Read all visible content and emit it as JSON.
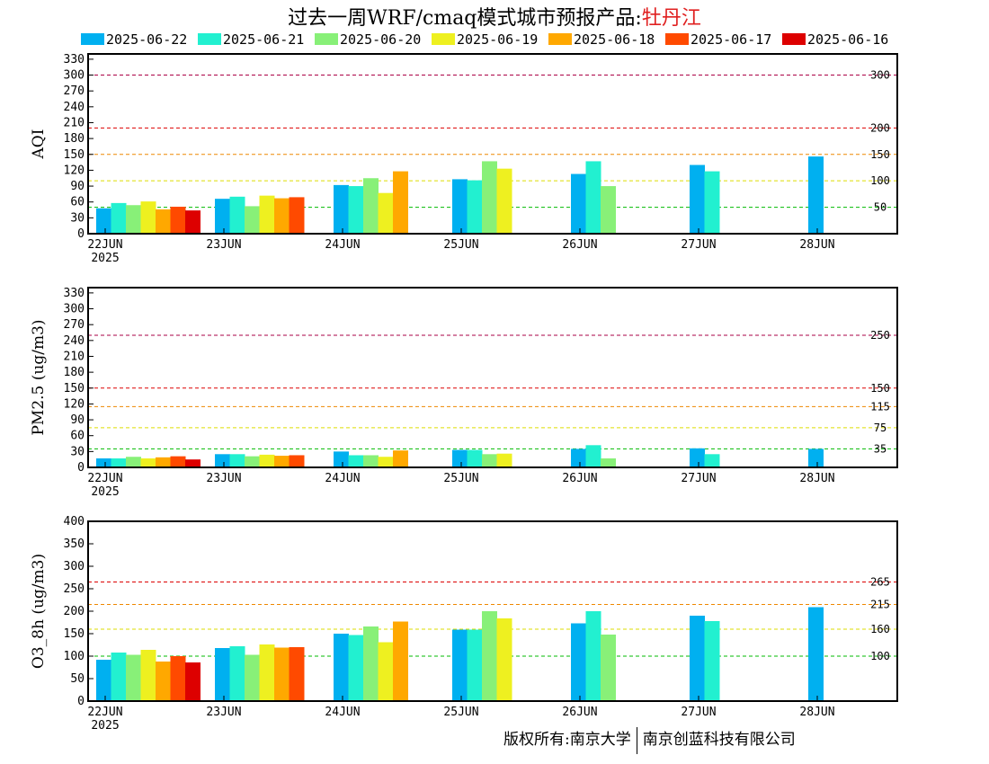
{
  "title": {
    "prefix": "过去一周WRF/cmaq模式城市预报产品:",
    "city": "牡丹江"
  },
  "copyright": {
    "part1": "版权所有:南京大学",
    "part2": "南京创蓝科技有限公司"
  },
  "legend": [
    {
      "label": "2025-06-22",
      "color": "#00b0f0"
    },
    {
      "label": "2025-06-21",
      "color": "#22f0d0"
    },
    {
      "label": "2025-06-20",
      "color": "#88f078"
    },
    {
      "label": "2025-06-19",
      "color": "#eef020"
    },
    {
      "label": "2025-06-18",
      "color": "#ffa800"
    },
    {
      "label": "2025-06-17",
      "color": "#ff4a00"
    },
    {
      "label": "2025-06-16",
      "color": "#dd0000"
    }
  ],
  "chart_data": [
    {
      "type": "bar",
      "ylabel": "AQI",
      "ylim": [
        0,
        340
      ],
      "yticks": [
        0,
        30,
        60,
        90,
        120,
        150,
        180,
        210,
        240,
        270,
        300,
        330
      ],
      "categories": [
        "22JUN",
        "23JUN",
        "24JUN",
        "25JUN",
        "26JUN",
        "27JUN",
        "28JUN"
      ],
      "first_category_year": "2025",
      "thresholds": [
        {
          "value": 50,
          "label": "50",
          "color": "#00bb00"
        },
        {
          "value": 100,
          "label": "100",
          "color": "#dddd00"
        },
        {
          "value": 150,
          "label": "150",
          "color": "#ee8800"
        },
        {
          "value": 200,
          "label": "200",
          "color": "#dd0000"
        },
        {
          "value": 300,
          "label": "300",
          "color": "#aa0044"
        }
      ],
      "series": [
        {
          "name": "2025-06-22",
          "values": [
            48,
            66,
            92,
            103,
            113,
            130,
            146
          ]
        },
        {
          "name": "2025-06-21",
          "values": [
            58,
            70,
            90,
            101,
            137,
            118,
            null
          ]
        },
        {
          "name": "2025-06-20",
          "values": [
            54,
            52,
            105,
            137,
            90,
            null,
            null
          ]
        },
        {
          "name": "2025-06-19",
          "values": [
            61,
            72,
            77,
            123,
            null,
            null,
            null
          ]
        },
        {
          "name": "2025-06-18",
          "values": [
            46,
            67,
            118,
            null,
            null,
            null,
            null
          ]
        },
        {
          "name": "2025-06-17",
          "values": [
            51,
            69,
            null,
            null,
            null,
            null,
            null
          ]
        },
        {
          "name": "2025-06-16",
          "values": [
            44,
            null,
            null,
            null,
            null,
            null,
            null
          ]
        }
      ]
    },
    {
      "type": "bar",
      "ylabel": "PM2.5 (ug/m3)",
      "ylim": [
        0,
        340
      ],
      "yticks": [
        0,
        30,
        60,
        90,
        120,
        150,
        180,
        210,
        240,
        270,
        300,
        330
      ],
      "categories": [
        "22JUN",
        "23JUN",
        "24JUN",
        "25JUN",
        "26JUN",
        "27JUN",
        "28JUN"
      ],
      "first_category_year": "2025",
      "thresholds": [
        {
          "value": 35,
          "label": "35",
          "color": "#00bb00"
        },
        {
          "value": 75,
          "label": "75",
          "color": "#dddd00"
        },
        {
          "value": 115,
          "label": "115",
          "color": "#ee8800"
        },
        {
          "value": 150,
          "label": "150",
          "color": "#dd0000"
        },
        {
          "value": 250,
          "label": "250",
          "color": "#aa0044"
        }
      ],
      "series": [
        {
          "name": "2025-06-22",
          "values": [
            17,
            25,
            30,
            33,
            35,
            36,
            35
          ]
        },
        {
          "name": "2025-06-21",
          "values": [
            17,
            25,
            23,
            33,
            42,
            25,
            null
          ]
        },
        {
          "name": "2025-06-20",
          "values": [
            20,
            21,
            23,
            25,
            17,
            null,
            null
          ]
        },
        {
          "name": "2025-06-19",
          "values": [
            17,
            24,
            20,
            26,
            null,
            null,
            null
          ]
        },
        {
          "name": "2025-06-18",
          "values": [
            19,
            22,
            32,
            null,
            null,
            null,
            null
          ]
        },
        {
          "name": "2025-06-17",
          "values": [
            21,
            23,
            null,
            null,
            null,
            null,
            null
          ]
        },
        {
          "name": "2025-06-16",
          "values": [
            15,
            null,
            null,
            null,
            null,
            null,
            null
          ]
        }
      ]
    },
    {
      "type": "bar",
      "ylabel": "O3_8h (ug/m3)",
      "ylim": [
        0,
        400
      ],
      "yticks": [
        0,
        50,
        100,
        150,
        200,
        250,
        300,
        350,
        400
      ],
      "categories": [
        "22JUN",
        "23JUN",
        "24JUN",
        "25JUN",
        "26JUN",
        "27JUN",
        "28JUN"
      ],
      "first_category_year": "2025",
      "thresholds": [
        {
          "value": 100,
          "label": "100",
          "color": "#00bb00"
        },
        {
          "value": 160,
          "label": "160",
          "color": "#dddd00"
        },
        {
          "value": 215,
          "label": "215",
          "color": "#ee8800"
        },
        {
          "value": 265,
          "label": "265",
          "color": "#dd0000"
        }
      ],
      "series": [
        {
          "name": "2025-06-22",
          "values": [
            92,
            118,
            150,
            159,
            173,
            190,
            209
          ]
        },
        {
          "name": "2025-06-21",
          "values": [
            108,
            122,
            147,
            159,
            200,
            178,
            null
          ]
        },
        {
          "name": "2025-06-20",
          "values": [
            103,
            103,
            166,
            200,
            148,
            null,
            null
          ]
        },
        {
          "name": "2025-06-19",
          "values": [
            114,
            126,
            131,
            184,
            null,
            null,
            null
          ]
        },
        {
          "name": "2025-06-18",
          "values": [
            88,
            119,
            177,
            null,
            null,
            null,
            null
          ]
        },
        {
          "name": "2025-06-17",
          "values": [
            100,
            120,
            null,
            null,
            null,
            null,
            null
          ]
        },
        {
          "name": "2025-06-16",
          "values": [
            86,
            null,
            null,
            null,
            null,
            null,
            null
          ]
        }
      ]
    }
  ]
}
